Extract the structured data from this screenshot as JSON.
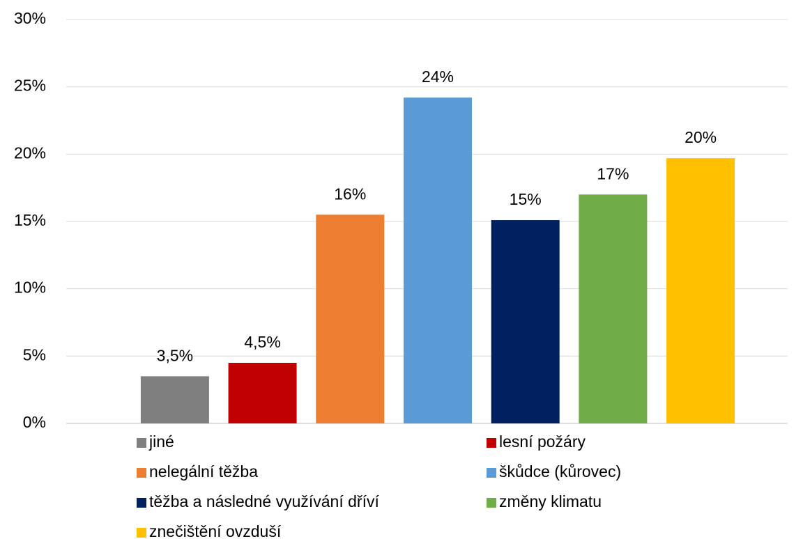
{
  "chart_data": {
    "type": "bar",
    "categories": [
      null
    ],
    "series": [
      {
        "name": "jiné",
        "color": "#7f7f7f",
        "values": [
          3.5
        ],
        "value_labels": [
          "3,5%"
        ]
      },
      {
        "name": "lesní požáry",
        "color": "#c00000",
        "values": [
          4.5
        ],
        "value_labels": [
          "4,5%"
        ]
      },
      {
        "name": "nelegální těžba",
        "color": "#ed7d31",
        "values": [
          15.5
        ],
        "value_labels": [
          "16%"
        ]
      },
      {
        "name": "škůdce (kůrovec)",
        "color": "#5b9bd5",
        "values": [
          24.2
        ],
        "value_labels": [
          "24%"
        ]
      },
      {
        "name": "těžba a následné využívání dříví",
        "color": "#002060",
        "values": [
          15.1
        ],
        "value_labels": [
          "15%"
        ]
      },
      {
        "name": "změny klimatu",
        "color": "#70ad47",
        "values": [
          17.0
        ],
        "value_labels": [
          "17%"
        ]
      },
      {
        "name": "znečištění ovzduší",
        "color": "#ffc000",
        "values": [
          19.7
        ],
        "value_labels": [
          "20%"
        ]
      }
    ],
    "ylim": [
      0,
      30
    ],
    "yticks": [
      {
        "value": 0,
        "label": "0%"
      },
      {
        "value": 5,
        "label": "5%"
      },
      {
        "value": 10,
        "label": "10%"
      },
      {
        "value": 15,
        "label": "15%"
      },
      {
        "value": 20,
        "label": "20%"
      },
      {
        "value": 25,
        "label": "25%"
      },
      {
        "value": 30,
        "label": "30%"
      }
    ],
    "grid": true,
    "legend": "bottom"
  }
}
